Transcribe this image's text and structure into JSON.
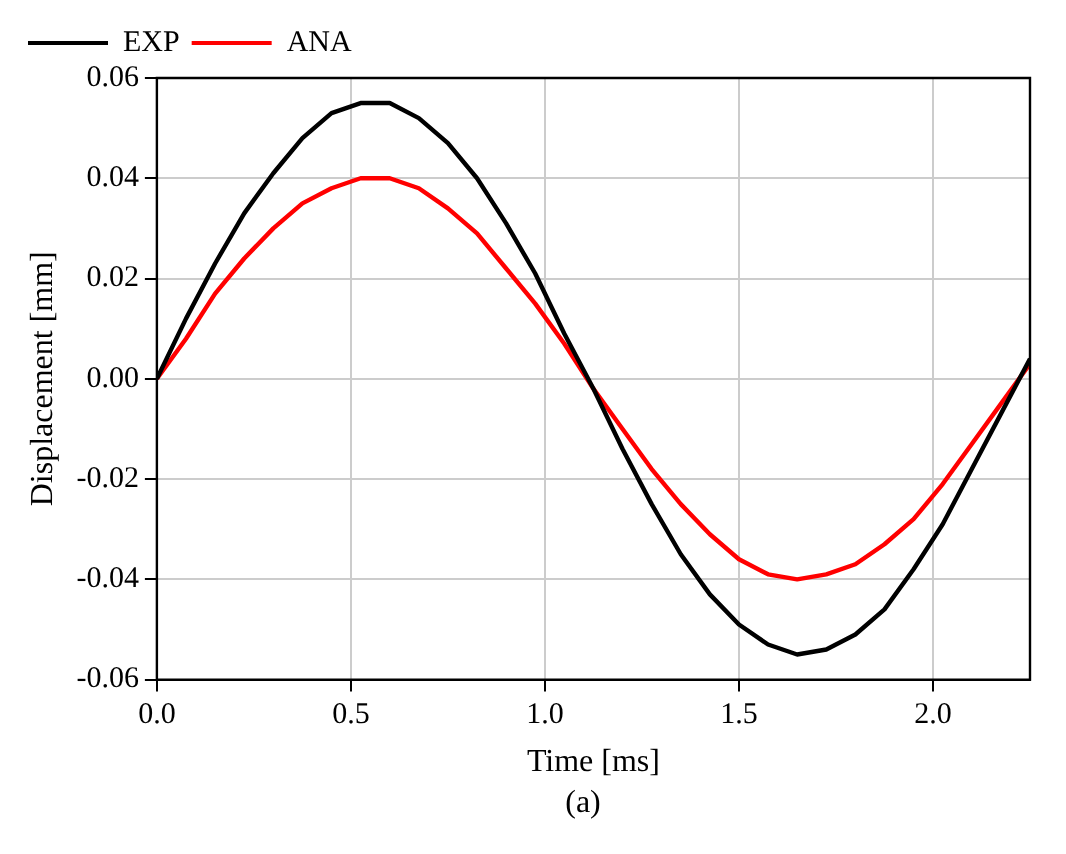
{
  "chart_data": {
    "type": "line",
    "xlabel": "Time [ms]",
    "ylabel": "Displacement [mm]",
    "annotations": [
      "(a)"
    ],
    "x": [
      0,
      0.075,
      0.15,
      0.225,
      0.3,
      0.375,
      0.45,
      0.525,
      0.6,
      0.675,
      0.75,
      0.825,
      0.9,
      0.975,
      1.05,
      1.125,
      1.2,
      1.275,
      1.35,
      1.425,
      1.5,
      1.575,
      1.65,
      1.725,
      1.8,
      1.875,
      1.95,
      2.025,
      2.1,
      2.175,
      2.25
    ],
    "series": [
      {
        "name": "EXP",
        "color": "#000000",
        "values": [
          0,
          0.012,
          0.023,
          0.033,
          0.041,
          0.048,
          0.053,
          0.055,
          0.055,
          0.052,
          0.047,
          0.04,
          0.031,
          0.021,
          0.009,
          -0.002,
          -0.014,
          -0.025,
          -0.035,
          -0.043,
          -0.049,
          -0.053,
          -0.055,
          -0.054,
          -0.051,
          -0.046,
          -0.038,
          -0.029,
          -0.018,
          -0.007,
          0.004
        ]
      },
      {
        "name": "ANA",
        "color": "#ff0000",
        "values": [
          0,
          0.008,
          0.017,
          0.024,
          0.03,
          0.035,
          0.038,
          0.04,
          0.04,
          0.038,
          0.034,
          0.029,
          0.022,
          0.015,
          0.007,
          -0.002,
          -0.01,
          -0.018,
          -0.025,
          -0.031,
          -0.036,
          -0.039,
          -0.04,
          -0.039,
          -0.037,
          -0.033,
          -0.028,
          -0.021,
          -0.013,
          -0.005,
          0.003
        ]
      }
    ],
    "xlim": [
      0,
      2.25
    ],
    "xticks": [
      {
        "value": 0,
        "label": "0.0"
      },
      0.5,
      {
        "value": 1,
        "label": "1.0"
      },
      1.5,
      {
        "value": 2,
        "label": "2.0"
      }
    ],
    "ylim": [
      -0.06,
      0.06
    ],
    "yticks": [
      {
        "value": -0.06,
        "label": "-0.06"
      },
      {
        "value": -0.04,
        "label": "-0.04"
      },
      {
        "value": -0.02,
        "label": "-0.02"
      },
      {
        "value": 0,
        "label": "0.00"
      },
      {
        "value": 0.02,
        "label": "0.02"
      },
      {
        "value": 0.04,
        "label": "0.04"
      },
      {
        "value": 0.06,
        "label": "0.06"
      }
    ],
    "grid": true,
    "legend": "top left",
    "marker": "none",
    "line_style": "solid"
  }
}
